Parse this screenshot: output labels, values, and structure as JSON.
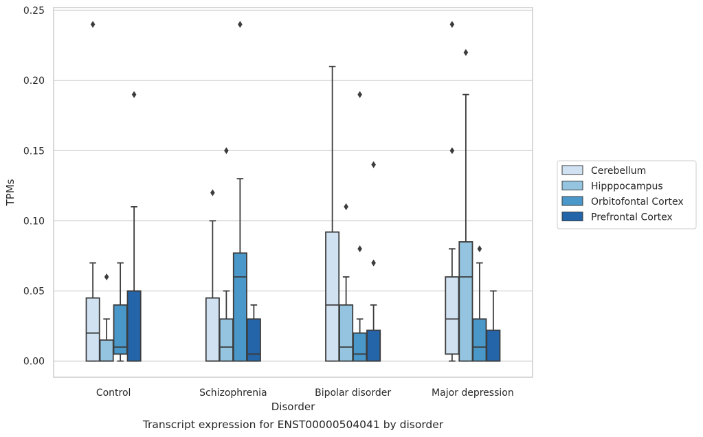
{
  "chart_data": {
    "type": "box",
    "xlabel": "Disorder",
    "ylabel": "TPMs",
    "caption": "Transcript expression for ENST00000504041 by disorder",
    "ylim": [
      -0.0115,
      0.252
    ],
    "yticks": [
      "0.00",
      "0.05",
      "0.10",
      "0.15",
      "0.20",
      "0.25"
    ],
    "ytick_values": [
      0,
      0.05,
      0.1,
      0.15,
      0.2,
      0.25
    ],
    "grid": "horizontal",
    "legend_position": "right",
    "categories": [
      "Control",
      "Schizophrenia",
      "Bipolar disorder",
      "Major depression"
    ],
    "series": [
      {
        "name": "Cerebellum",
        "color": "#d0e1f2",
        "boxes": [
          {
            "whislo": 0,
            "q1": 0,
            "med": 0.02,
            "q3": 0.045,
            "whishi": 0.07,
            "fliers": [
              0.24
            ]
          },
          {
            "whislo": 0,
            "q1": 0,
            "med": 0,
            "q3": 0.045,
            "whishi": 0.1,
            "fliers": [
              0.12
            ]
          },
          {
            "whislo": 0,
            "q1": 0,
            "med": 0.04,
            "q3": 0.092,
            "whishi": 0.21,
            "fliers": []
          },
          {
            "whislo": 0,
            "q1": 0.005,
            "med": 0.03,
            "q3": 0.06,
            "whishi": 0.08,
            "fliers": [
              0.15,
              0.24
            ]
          }
        ]
      },
      {
        "name": "Hipppocampus",
        "color": "#94c4df",
        "boxes": [
          {
            "whislo": 0,
            "q1": 0,
            "med": 0,
            "q3": 0.015,
            "whishi": 0.03,
            "fliers": [
              0.06
            ]
          },
          {
            "whislo": 0,
            "q1": 0,
            "med": 0.01,
            "q3": 0.03,
            "whishi": 0.05,
            "fliers": [
              0.15
            ]
          },
          {
            "whislo": 0,
            "q1": 0,
            "med": 0.01,
            "q3": 0.04,
            "whishi": 0.06,
            "fliers": [
              0.11
            ]
          },
          {
            "whislo": 0,
            "q1": 0,
            "med": 0.06,
            "q3": 0.085,
            "whishi": 0.19,
            "fliers": [
              0.22
            ]
          }
        ]
      },
      {
        "name": "Orbitofontal Cortex",
        "color": "#4a98c9",
        "boxes": [
          {
            "whislo": 0,
            "q1": 0.005,
            "med": 0.01,
            "q3": 0.04,
            "whishi": 0.07,
            "fliers": []
          },
          {
            "whislo": 0,
            "q1": 0,
            "med": 0.06,
            "q3": 0.077,
            "whishi": 0.13,
            "fliers": [
              0.24
            ]
          },
          {
            "whislo": 0,
            "q1": 0,
            "med": 0.005,
            "q3": 0.02,
            "whishi": 0.03,
            "fliers": [
              0.08,
              0.19
            ]
          },
          {
            "whislo": 0,
            "q1": 0,
            "med": 0.01,
            "q3": 0.03,
            "whishi": 0.07,
            "fliers": [
              0.08
            ]
          }
        ]
      },
      {
        "name": "Prefrontal Cortex",
        "color": "#2464a8",
        "boxes": [
          {
            "whislo": 0,
            "q1": 0,
            "med": 0.05,
            "q3": 0.05,
            "whishi": 0.11,
            "fliers": [
              0.19
            ]
          },
          {
            "whislo": 0,
            "q1": 0,
            "med": 0.005,
            "q3": 0.03,
            "whishi": 0.04,
            "fliers": []
          },
          {
            "whislo": 0,
            "q1": 0,
            "med": 0,
            "q3": 0.022,
            "whishi": 0.04,
            "fliers": [
              0.07,
              0.14
            ]
          },
          {
            "whislo": 0,
            "q1": 0,
            "med": 0,
            "q3": 0.022,
            "whishi": 0.05,
            "fliers": []
          }
        ]
      }
    ]
  }
}
